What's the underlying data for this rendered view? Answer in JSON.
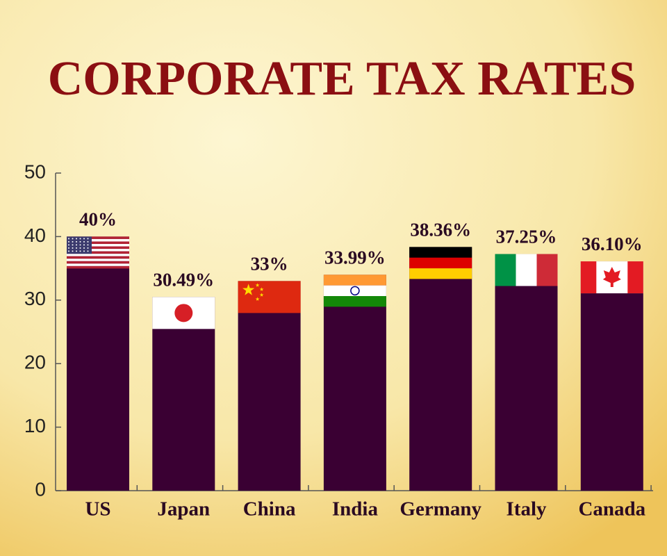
{
  "chart_data": {
    "type": "bar",
    "title": "CORPORATE TAX RATES",
    "categories": [
      "US",
      "Japan",
      "China",
      "India",
      "Germany",
      "Italy",
      "Canada"
    ],
    "values": [
      40,
      30.49,
      33,
      33.99,
      38.36,
      37.25,
      36.1
    ],
    "value_labels": [
      "40%",
      "30.49%",
      "33%",
      "33.99%",
      "38.36%",
      "37.25%",
      "36.10%"
    ],
    "color": "#3a0033",
    "ylim": [
      0,
      50
    ],
    "yticks": [
      0,
      10,
      20,
      30,
      40,
      50
    ]
  }
}
